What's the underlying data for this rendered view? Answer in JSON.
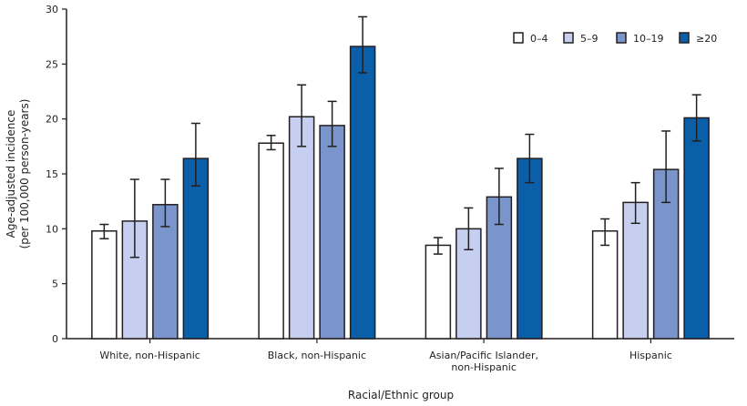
{
  "chart_data": {
    "type": "bar",
    "title": "",
    "xlabel": "Racial/Ethnic group",
    "ylabel": "Age-adjusted incidence",
    "ylabel_sub": "(per 100,000 person-years)",
    "ylim": [
      0,
      30
    ],
    "yticks": [
      0,
      5,
      10,
      15,
      20,
      25,
      30
    ],
    "grid": false,
    "legend_position": "top-right",
    "categories": [
      [
        "White, non-Hispanic"
      ],
      [
        "Black, non-Hispanic"
      ],
      [
        "Asian/Pacific Islander,",
        "non-Hispanic"
      ],
      [
        "Hispanic"
      ]
    ],
    "series": [
      {
        "name": "0–4",
        "color": "#ffffff",
        "values": [
          9.8,
          17.8,
          8.5,
          9.8
        ],
        "ci_low": [
          9.1,
          17.2,
          7.7,
          8.5
        ],
        "ci_high": [
          10.4,
          18.5,
          9.2,
          10.9
        ]
      },
      {
        "name": "5–9",
        "color": "#c6cff0",
        "values": [
          10.7,
          20.2,
          10.0,
          12.4
        ],
        "ci_low": [
          7.4,
          17.5,
          8.1,
          10.5
        ],
        "ci_high": [
          14.5,
          23.1,
          11.9,
          14.2
        ]
      },
      {
        "name": "10–19",
        "color": "#7a95cc",
        "values": [
          12.2,
          19.4,
          12.9,
          15.4
        ],
        "ci_low": [
          10.2,
          17.5,
          10.4,
          12.4
        ],
        "ci_high": [
          14.5,
          21.6,
          15.5,
          18.9
        ]
      },
      {
        "name": "≥20",
        "color": "#0b5ea8",
        "values": [
          16.4,
          26.6,
          16.4,
          20.1
        ],
        "ci_low": [
          13.9,
          24.2,
          14.2,
          18.0
        ],
        "ci_high": [
          19.6,
          29.3,
          18.6,
          22.2
        ]
      }
    ]
  }
}
